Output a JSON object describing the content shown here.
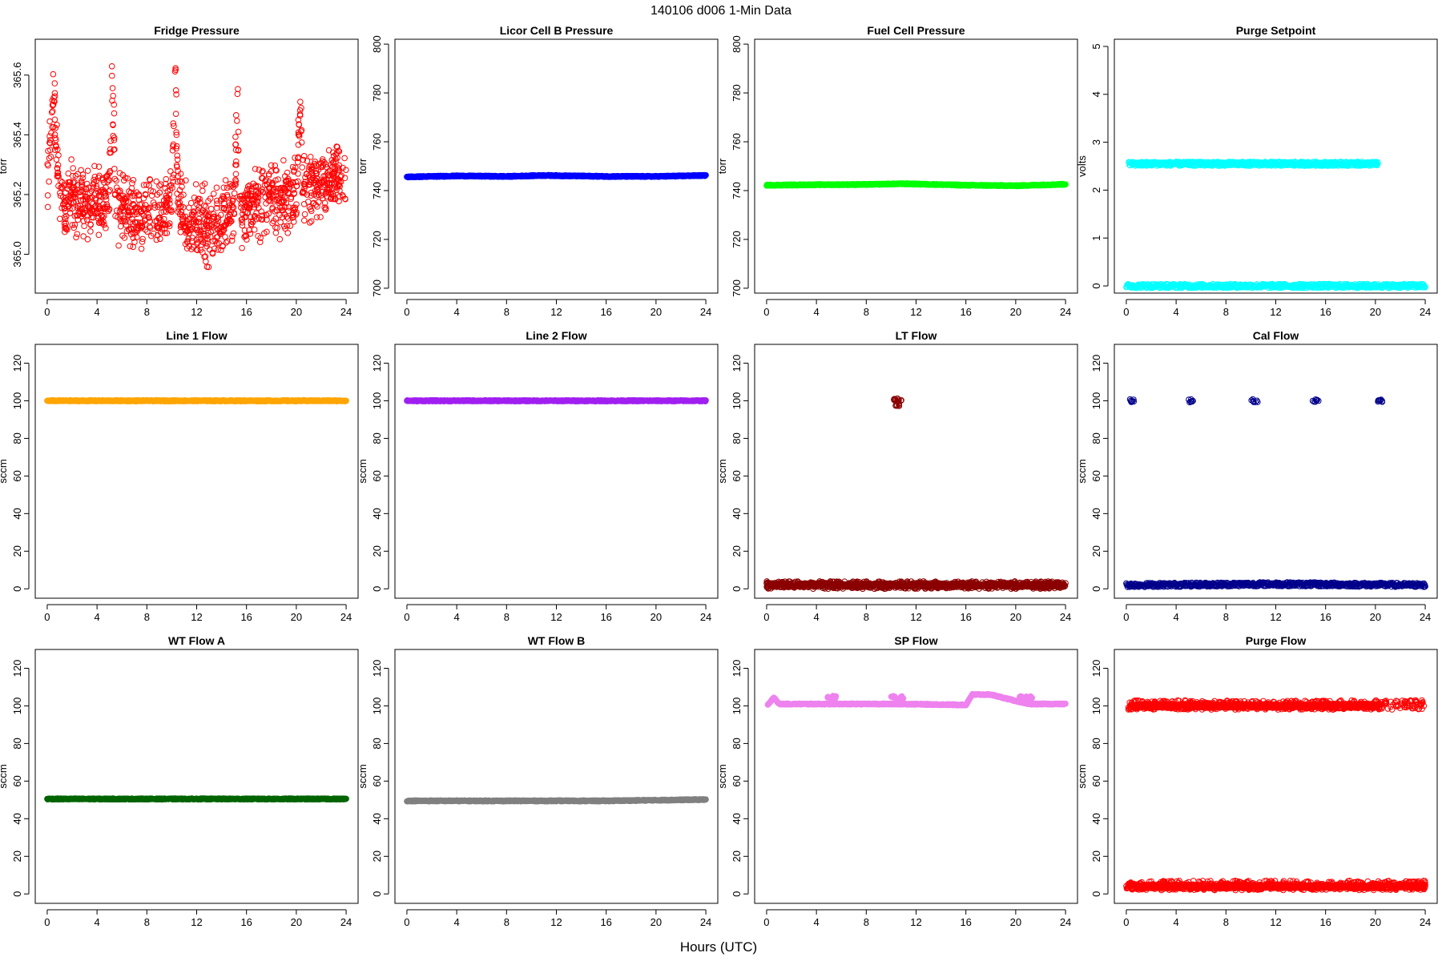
{
  "figure": {
    "title": "140106   d006   1-Min Data",
    "xlabel": "Hours (UTC)"
  },
  "chart_data": [
    {
      "type": "scatter",
      "title": "Fridge Pressure",
      "ylabel": "torr",
      "color": "#ff0000",
      "marker": "open-circle",
      "xlim": [
        0,
        24
      ],
      "ylim": [
        364.87,
        365.72
      ],
      "xticks": [
        0,
        4,
        8,
        12,
        16,
        20,
        24
      ],
      "yticks": [
        365.0,
        365.2,
        365.4,
        365.6
      ],
      "ytick_labels": [
        "365.0",
        "365.2",
        "365.4",
        "365.6"
      ],
      "series": [
        {
          "x": [
            0,
            0.5,
            1,
            1.5,
            2,
            2.5,
            3,
            3.5,
            4,
            4.5,
            5,
            5.2,
            5.5,
            6,
            6.5,
            7,
            7.5,
            8,
            8.5,
            9,
            9.5,
            10,
            10.3,
            10.5,
            11,
            11.5,
            12,
            12.5,
            13,
            13.5,
            14,
            14.5,
            15,
            15.3,
            15.5,
            16,
            16.5,
            17,
            17.5,
            18,
            18.5,
            19,
            19.5,
            20,
            20.3,
            20.5,
            21,
            21.5,
            22,
            22.5,
            23,
            23.5,
            24
          ],
          "y": [
            365.22,
            365.55,
            365.18,
            365.15,
            365.2,
            365.17,
            365.18,
            365.16,
            365.19,
            365.17,
            365.2,
            365.6,
            365.18,
            365.14,
            365.13,
            365.14,
            365.12,
            365.16,
            365.13,
            365.12,
            365.15,
            365.19,
            365.55,
            365.2,
            365.1,
            365.12,
            365.1,
            365.09,
            365.1,
            365.09,
            365.11,
            365.13,
            365.14,
            365.5,
            365.12,
            365.16,
            365.18,
            365.16,
            365.19,
            365.2,
            365.18,
            365.19,
            365.18,
            365.2,
            365.55,
            365.25,
            365.22,
            365.24,
            365.25,
            365.23,
            365.26,
            365.25,
            365.24
          ]
        }
      ]
    },
    {
      "type": "scatter",
      "title": "Licor Cell B Pressure",
      "ylabel": "torr",
      "color": "#0000ff",
      "marker": "filled-circle",
      "xlim": [
        0,
        24
      ],
      "ylim": [
        698,
        802
      ],
      "xticks": [
        0,
        4,
        8,
        12,
        16,
        20,
        24
      ],
      "yticks": [
        700,
        720,
        740,
        760,
        780,
        800
      ],
      "ytick_labels": [
        "700",
        "720",
        "740",
        "760",
        "780",
        "800"
      ],
      "series": [
        {
          "x": [
            0,
            4,
            8,
            11,
            16,
            20,
            24
          ],
          "y": [
            745.6,
            746.0,
            745.8,
            746.2,
            745.8,
            745.8,
            746.2
          ]
        }
      ]
    },
    {
      "type": "scatter",
      "title": "Fuel Cell Pressure",
      "ylabel": "torr",
      "color": "#00ff00",
      "marker": "filled-circle",
      "xlim": [
        0,
        24
      ],
      "ylim": [
        698,
        802
      ],
      "xticks": [
        0,
        4,
        8,
        12,
        16,
        20,
        24
      ],
      "yticks": [
        700,
        720,
        740,
        760,
        780,
        800
      ],
      "ytick_labels": [
        "700",
        "720",
        "740",
        "760",
        "780",
        "800"
      ],
      "series": [
        {
          "x": [
            0,
            4,
            8,
            11,
            16,
            20,
            24
          ],
          "y": [
            742.2,
            742.4,
            742.5,
            742.8,
            742.2,
            742.0,
            742.6
          ]
        }
      ]
    },
    {
      "type": "scatter",
      "title": "Purge Setpoint",
      "ylabel": "volts",
      "color": "#00ffff",
      "marker": "open-circle",
      "xlim": [
        0,
        24
      ],
      "ylim": [
        -0.15,
        5.15
      ],
      "xticks": [
        0,
        4,
        8,
        12,
        16,
        20,
        24
      ],
      "yticks": [
        0,
        1,
        2,
        3,
        4,
        5
      ],
      "ytick_labels": [
        "0",
        "1",
        "2",
        "3",
        "4",
        "5"
      ],
      "series": [
        {
          "x": [
            0,
            24
          ],
          "y": [
            0,
            0
          ]
        },
        {
          "x": [
            0.2,
            5.1,
            10.2,
            15.1,
            20.2
          ],
          "y": [
            2.55,
            2.55,
            2.55,
            2.55,
            2.55
          ]
        }
      ]
    },
    {
      "type": "scatter",
      "title": "Line 1 Flow",
      "ylabel": "sccm",
      "color": "#ffa500",
      "marker": "filled-circle",
      "xlim": [
        0,
        24
      ],
      "ylim": [
        -5,
        130
      ],
      "xticks": [
        0,
        4,
        8,
        12,
        16,
        20,
        24
      ],
      "yticks": [
        0,
        20,
        40,
        60,
        80,
        100,
        120
      ],
      "ytick_labels": [
        "0",
        "20",
        "40",
        "60",
        "80",
        "100",
        "120"
      ],
      "series": [
        {
          "x": [
            0,
            24
          ],
          "y": [
            100,
            100
          ]
        }
      ]
    },
    {
      "type": "scatter",
      "title": "Line 2 Flow",
      "ylabel": "sccm",
      "color": "#a020f0",
      "marker": "filled-circle",
      "xlim": [
        0,
        24
      ],
      "ylim": [
        -5,
        130
      ],
      "xticks": [
        0,
        4,
        8,
        12,
        16,
        20,
        24
      ],
      "yticks": [
        0,
        20,
        40,
        60,
        80,
        100,
        120
      ],
      "ytick_labels": [
        "0",
        "20",
        "40",
        "60",
        "80",
        "100",
        "120"
      ],
      "series": [
        {
          "x": [
            0,
            24
          ],
          "y": [
            100,
            100
          ]
        }
      ]
    },
    {
      "type": "scatter",
      "title": "LT Flow",
      "ylabel": "sccm",
      "color": "#8b0000",
      "marker": "open-circle",
      "xlim": [
        0,
        24
      ],
      "ylim": [
        -5,
        130
      ],
      "xticks": [
        0,
        4,
        8,
        12,
        16,
        20,
        24
      ],
      "yticks": [
        0,
        20,
        40,
        60,
        80,
        100,
        120
      ],
      "ytick_labels": [
        "0",
        "20",
        "40",
        "60",
        "80",
        "100",
        "120"
      ],
      "series": [
        {
          "x": [
            0,
            24
          ],
          "y": [
            2,
            2
          ]
        },
        {
          "x": [
            10.4,
            10.5,
            10.6
          ],
          "y": [
            101,
            98,
            100
          ]
        }
      ]
    },
    {
      "type": "scatter",
      "title": "Cal Flow",
      "ylabel": "sccm",
      "color": "#00008b",
      "marker": "open-circle",
      "xlim": [
        0,
        24
      ],
      "ylim": [
        -5,
        130
      ],
      "xticks": [
        0,
        4,
        8,
        12,
        16,
        20,
        24
      ],
      "yticks": [
        0,
        20,
        40,
        60,
        80,
        100,
        120
      ],
      "ytick_labels": [
        "0",
        "20",
        "40",
        "60",
        "80",
        "100",
        "120"
      ],
      "series": [
        {
          "x": [
            0,
            12,
            24
          ],
          "y": [
            2,
            2.5,
            2
          ]
        },
        {
          "x": [
            0.5,
            5.2,
            10.3,
            15.2,
            20.4
          ],
          "y": [
            100,
            100,
            100,
            100,
            100
          ]
        }
      ]
    },
    {
      "type": "scatter",
      "title": "WT Flow A",
      "ylabel": "sccm",
      "color": "#006400",
      "marker": "filled-circle",
      "xlim": [
        0,
        24
      ],
      "ylim": [
        -5,
        130
      ],
      "xticks": [
        0,
        4,
        8,
        12,
        16,
        20,
        24
      ],
      "yticks": [
        0,
        20,
        40,
        60,
        80,
        100,
        120
      ],
      "ytick_labels": [
        "0",
        "20",
        "40",
        "60",
        "80",
        "100",
        "120"
      ],
      "series": [
        {
          "x": [
            0,
            24
          ],
          "y": [
            50.5,
            50.5
          ]
        }
      ]
    },
    {
      "type": "scatter",
      "title": "WT Flow B",
      "ylabel": "sccm",
      "color": "#808080",
      "marker": "filled-circle",
      "xlim": [
        0,
        24
      ],
      "ylim": [
        -5,
        130
      ],
      "xticks": [
        0,
        4,
        8,
        12,
        16,
        20,
        24
      ],
      "yticks": [
        0,
        20,
        40,
        60,
        80,
        100,
        120
      ],
      "ytick_labels": [
        "0",
        "20",
        "40",
        "60",
        "80",
        "100",
        "120"
      ],
      "series": [
        {
          "x": [
            0,
            16,
            24
          ],
          "y": [
            49.5,
            49.5,
            50.2
          ]
        }
      ]
    },
    {
      "type": "scatter",
      "title": "SP Flow",
      "ylabel": "sccm",
      "color": "#ee82ee",
      "marker": "filled-circle",
      "xlim": [
        0,
        24
      ],
      "ylim": [
        -5,
        130
      ],
      "xticks": [
        0,
        4,
        8,
        12,
        16,
        20,
        24
      ],
      "yticks": [
        0,
        20,
        40,
        60,
        80,
        100,
        120
      ],
      "ytick_labels": [
        "0",
        "20",
        "40",
        "60",
        "80",
        "100",
        "120"
      ],
      "series": [
        {
          "x": [
            0.1,
            0.6,
            1,
            10,
            11,
            16,
            16.5,
            18,
            21,
            24
          ],
          "y": [
            100.5,
            104.5,
            101,
            101,
            101,
            100.5,
            106,
            106,
            101,
            101
          ]
        },
        {
          "x": [
            5.1,
            5.5,
            10.2,
            10.8,
            20.5,
            21.1
          ],
          "y": [
            104.5,
            104.5,
            104.5,
            104.5,
            104.5,
            104.5
          ]
        }
      ]
    },
    {
      "type": "scatter",
      "title": "Purge Flow",
      "ylabel": "sccm",
      "color": "#ff0000",
      "marker": "open-circle",
      "xlim": [
        0,
        24
      ],
      "ylim": [
        -5,
        130
      ],
      "xticks": [
        0,
        4,
        8,
        12,
        16,
        20,
        24
      ],
      "yticks": [
        0,
        20,
        40,
        60,
        80,
        100,
        120
      ],
      "ytick_labels": [
        "0",
        "20",
        "40",
        "60",
        "80",
        "100",
        "120"
      ],
      "series": [
        {
          "x": [
            0,
            24
          ],
          "y": [
            4,
            4
          ]
        },
        {
          "x": [
            0.3,
            5.2,
            10.3,
            15.2,
            20.3
          ],
          "y": [
            100,
            100,
            100,
            100,
            100
          ]
        }
      ]
    }
  ]
}
